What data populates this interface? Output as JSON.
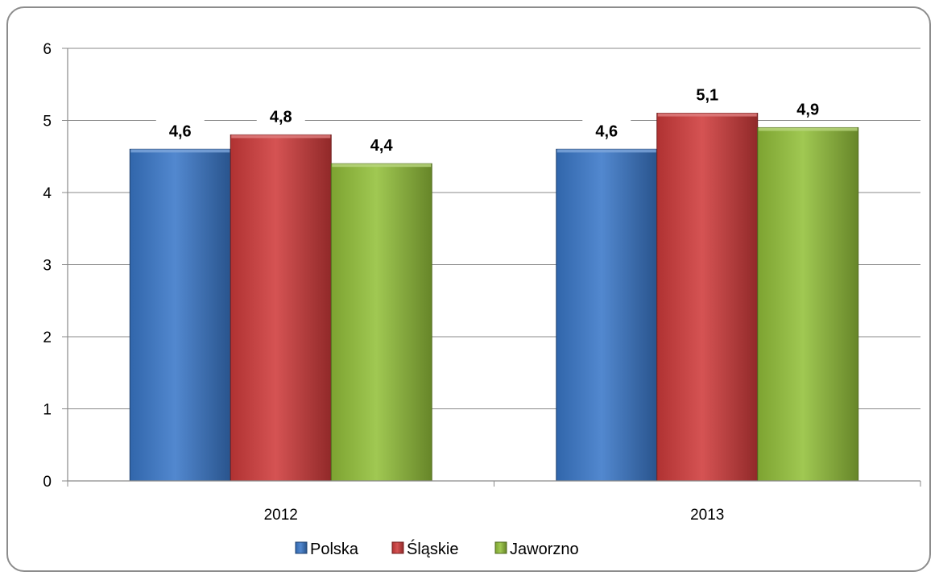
{
  "chart_data": {
    "type": "bar",
    "categories": [
      "2012",
      "2013"
    ],
    "series": [
      {
        "name": "Polska",
        "values": [
          4.6,
          4.6
        ],
        "labels": [
          "4,6",
          "4,6"
        ],
        "color": "#3a78c9"
      },
      {
        "name": "Śląskie",
        "values": [
          4.8,
          5.1
        ],
        "labels": [
          "4,8",
          "5,1"
        ],
        "color": "#cf3b3b"
      },
      {
        "name": "Jaworzno",
        "values": [
          4.4,
          4.9
        ],
        "labels": [
          "4,4",
          "4,9"
        ],
        "color": "#93c03a"
      }
    ],
    "y_ticks": [
      "0",
      "1",
      "2",
      "3",
      "4",
      "5",
      "6"
    ],
    "ylim": [
      0,
      6
    ],
    "grid": true,
    "legend": "bottom",
    "title": "",
    "xlabel": "",
    "ylabel": ""
  }
}
